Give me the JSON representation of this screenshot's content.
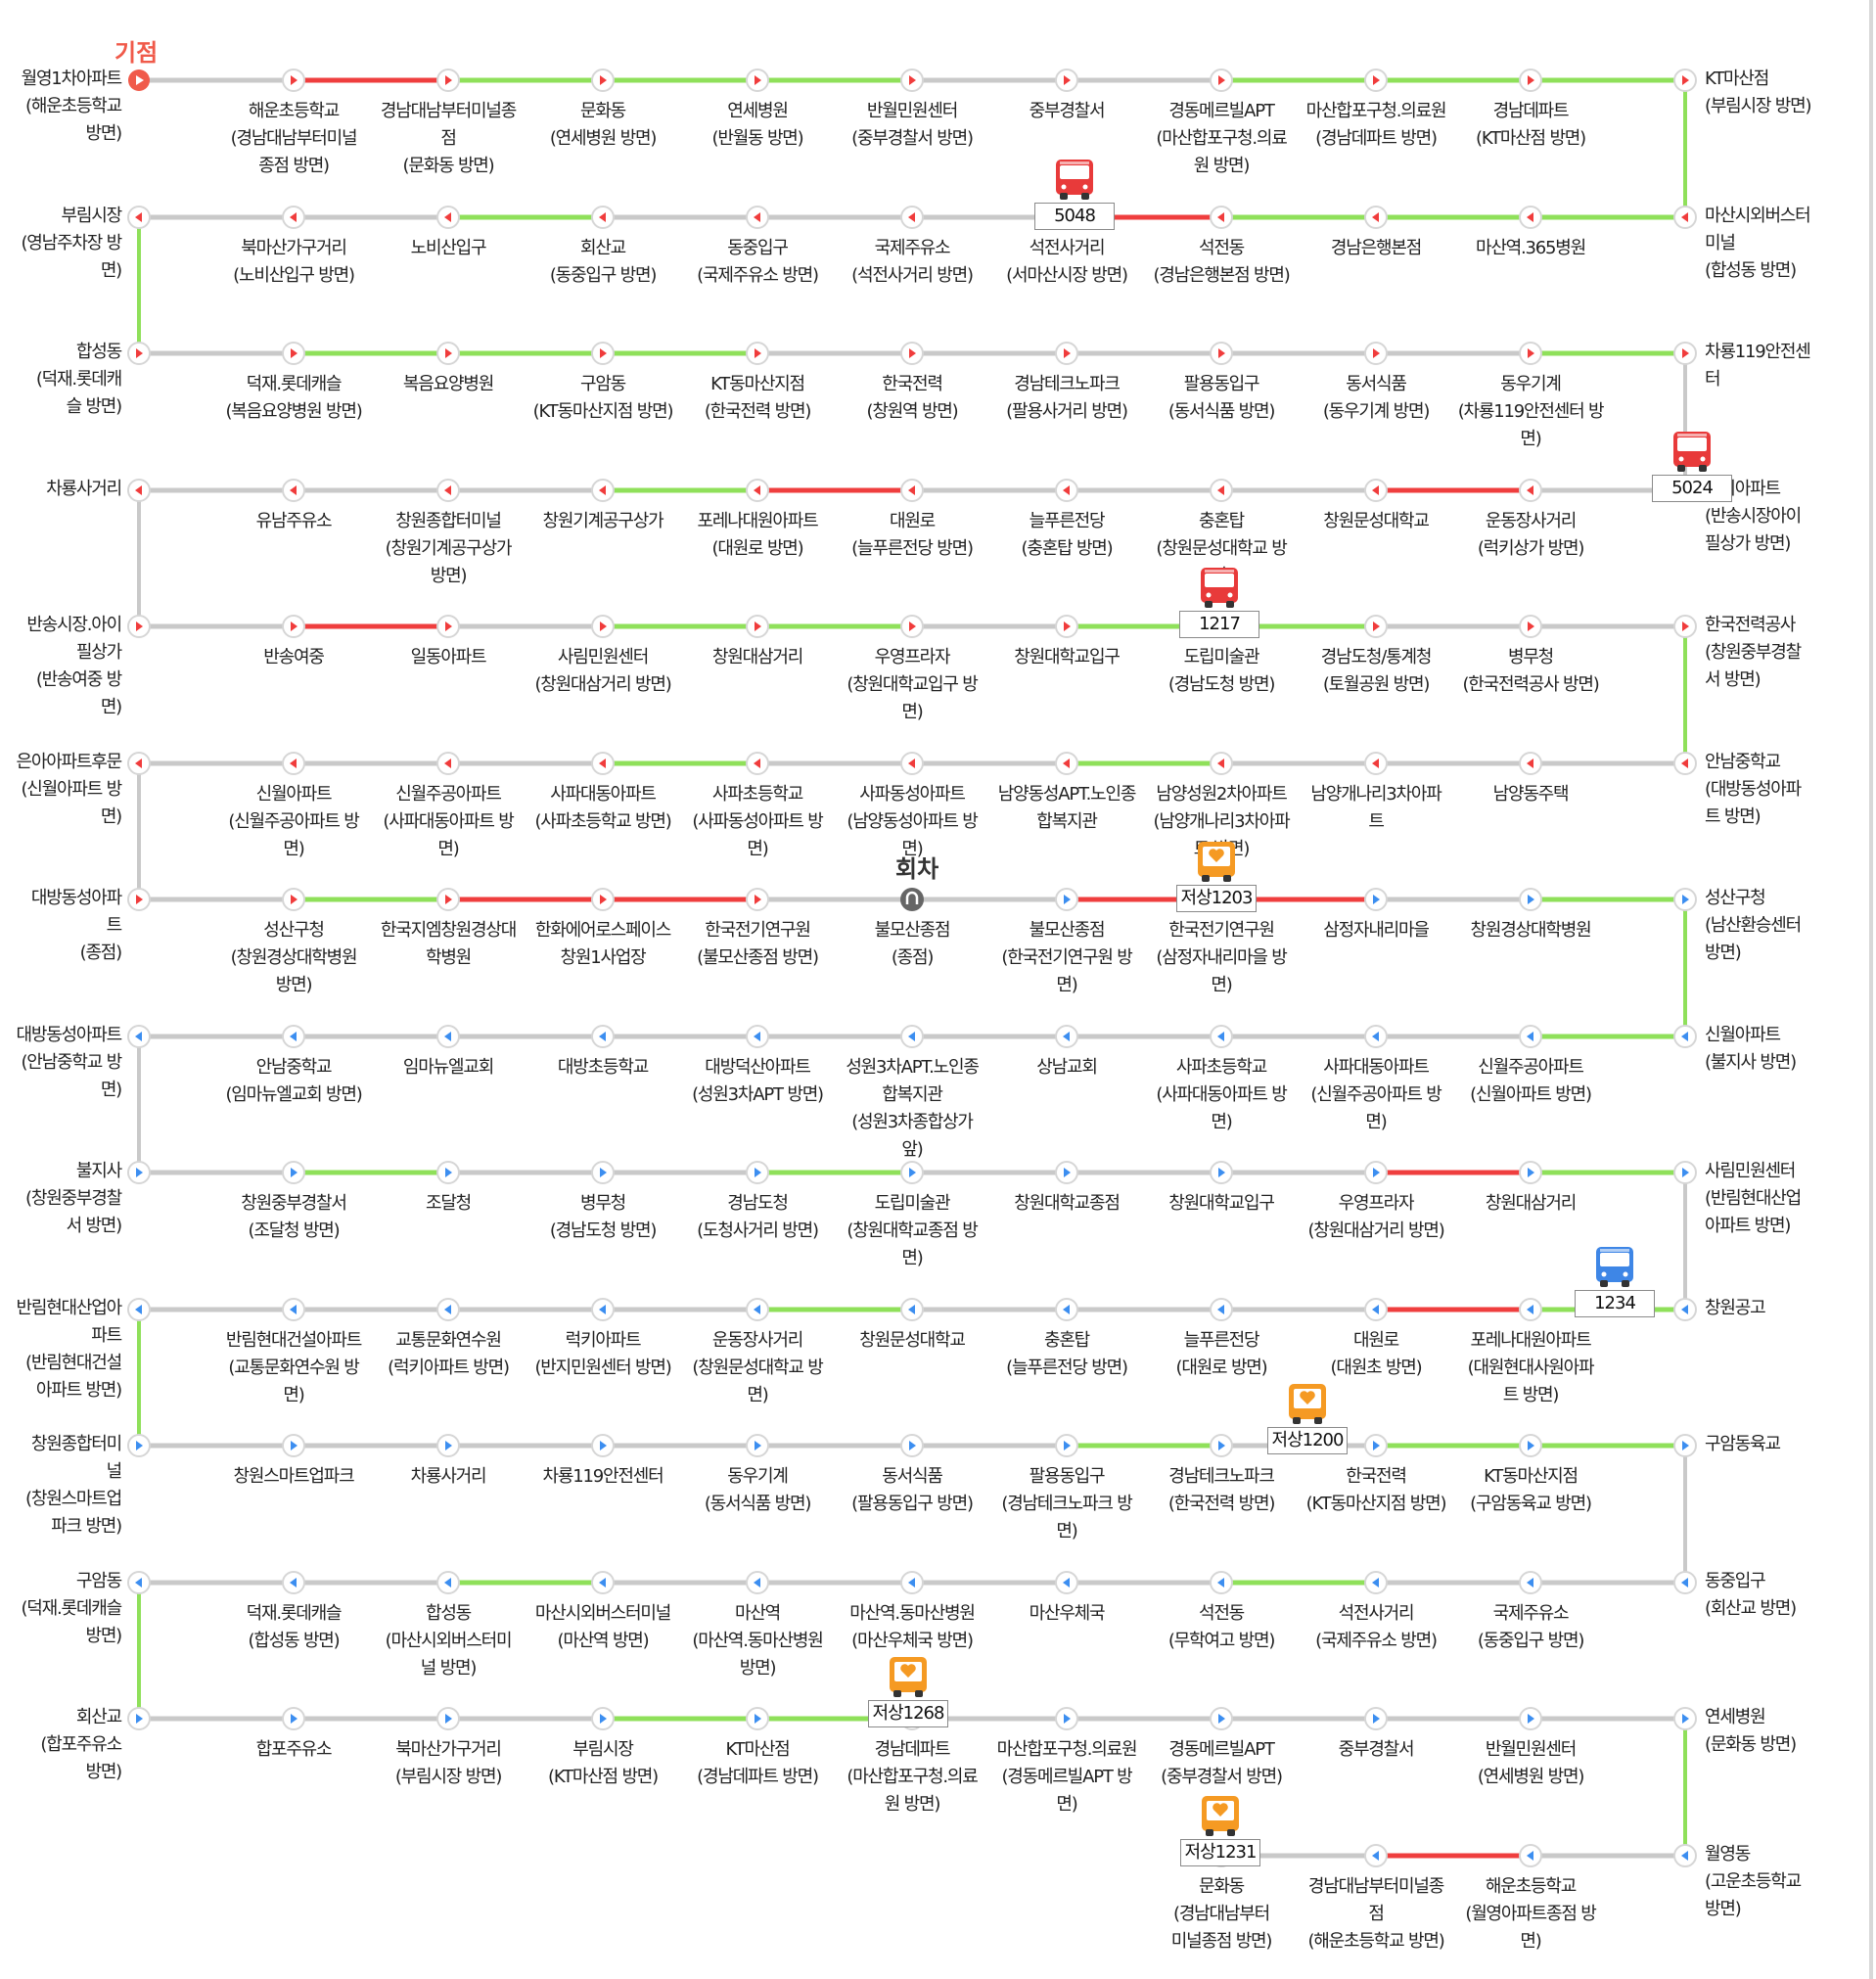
{
  "colors": {
    "normal": "#c9c9c9",
    "smooth": "#8fe05a",
    "congested": "#ef3e3e",
    "outbound": "#f03c3c",
    "inbound": "#3c8ef0",
    "bus_red": "#e83a3a",
    "bus_orange": "#f59a23",
    "bus_blue": "#3e86e6"
  },
  "start_label": "기점",
  "turn_label": "회차",
  "rows": [
    {
      "stops": [
        "월영1차아파트\n(해운초등학교\n방면)",
        "해운초등학교\n(경남대남부터미널\n종점 방면)",
        "경남대남부터미널종\n점\n(문화동 방면)",
        "문화동\n(연세병원 방면)",
        "연세병원\n(반월동 방면)",
        "반월민원센터\n(중부경찰서 방면)",
        "중부경찰서",
        "경동메르빌APT\n(마산합포구청.의료\n원 방면)",
        "마산합포구청.의료원\n(경남데파트 방면)",
        "경남데파트\n(KT마산점 방면)",
        "KT마산점\n(부림시장 방면)"
      ],
      "segments": [
        "normal",
        "congested",
        "smooth",
        "smooth",
        "smooth",
        "normal",
        "normal",
        "smooth",
        "smooth",
        "smooth"
      ]
    },
    {
      "stops": [
        "마산시외버스터\n미널\n(합성동 방면)",
        "마산역.365병원",
        "경남은행본점",
        "석전동\n(경남은행본점 방면)",
        "석전사거리\n(서마산시장 방면)",
        "국제주유소\n(석전사거리 방면)",
        "동중입구\n(국제주유소 방면)",
        "회산교\n(동중입구 방면)",
        "노비산입구",
        "북마산가구거리\n(노비산입구 방면)",
        "부림시장\n(영남주차장 방\n면)"
      ],
      "segments": [
        "smooth",
        "smooth",
        "smooth",
        "congested",
        "normal",
        "normal",
        "normal",
        "smooth",
        "normal",
        "normal"
      ]
    },
    {
      "stops": [
        "합성동\n(덕재.롯데캐\n슬 방면)",
        "덕재.롯데캐슬\n(복음요양병원 방면)",
        "복음요양병원",
        "구암동\n(KT동마산지점 방면)",
        "KT동마산지점\n(한국전력 방면)",
        "한국전력\n(창원역 방면)",
        "경남테크노파크\n(팔용사거리 방면)",
        "팔용동입구\n(동서식품 방면)",
        "동서식품\n(동우기계 방면)",
        "동우기계\n(차룡119안전센터 방\n면)",
        "차룡119안전센\n터"
      ],
      "segments": [
        "normal",
        "smooth",
        "smooth",
        "smooth",
        "normal",
        "normal",
        "normal",
        "normal",
        "normal",
        "smooth"
      ]
    },
    {
      "stops": [
        "럭키아파트\n(반송시장아이\n필상가 방면)",
        "운동장사거리\n(럭키상가 방면)",
        "창원문성대학교",
        "충혼탑\n(창원문성대학교 방\n면)",
        "늘푸른전당\n(충혼탑 방면)",
        "대원로\n(늘푸른전당 방면)",
        "포레나대원아파트\n(대원로 방면)",
        "창원기계공구상가",
        "창원종합터미널\n(창원기계공구상가\n방면)",
        "유남주유소",
        "차룡사거리"
      ],
      "segments": [
        "normal",
        "congested",
        "normal",
        "normal",
        "normal",
        "congested",
        "smooth",
        "normal",
        "normal",
        "normal"
      ]
    },
    {
      "stops": [
        "반송시장.아이\n필상가\n(반송여중 방\n면)",
        "반송여중",
        "일동아파트",
        "사림민원센터\n(창원대삼거리 방면)",
        "창원대삼거리",
        "우영프라자\n(창원대학교입구 방\n면)",
        "창원대학교입구",
        "도립미술관\n(경남도청 방면)",
        "경남도청/통계청\n(토월공원 방면)",
        "병무청\n(한국전력공사 방면)",
        "한국전력공사\n(창원중부경찰\n서 방면)"
      ],
      "segments": [
        "normal",
        "congested",
        "normal",
        "smooth",
        "smooth",
        "normal",
        "smooth",
        "smooth",
        "normal",
        "normal"
      ]
    },
    {
      "stops": [
        "안남중학교\n(대방동성아파\n트 방면)",
        "남양동주택",
        "남양개나리3차아파\n트",
        "남양성원2차아파트\n(남양개나리3차아파\n트 방면)",
        "남양동성APT.노인종\n합복지관",
        "사파동성아파트\n(남양동성아파트 방\n면)",
        "사파초등학교\n(사파동성아파트 방\n면)",
        "사파대동아파트\n(사파초등학교 방면)",
        "신월주공아파트\n(사파대동아파트 방\n면)",
        "신월아파트\n(신월주공아파트 방\n면)",
        "은아아파트후문\n(신월아파트 방\n면)"
      ],
      "segments": [
        "normal",
        "normal",
        "normal",
        "smooth",
        "normal",
        "normal",
        "smooth",
        "normal",
        "normal",
        "normal"
      ]
    },
    {
      "stops": [
        "대방동성아파\n트\n(종점)",
        "성산구청\n(창원경상대학병원\n방면)",
        "한국지엠창원경상대\n학병원",
        "한화에어로스페이스\n창원1사업장",
        "한국전기연구원\n(불모산종점 방면)",
        "불모산종점\n(종점)",
        "불모산종점\n(한국전기연구원 방\n면)",
        "한국전기연구원\n(삼정자내리마을 방\n면)",
        "삼정자내리마을",
        "창원경상대학병원",
        "성산구청\n(남산환승센터\n방면)"
      ],
      "segments": [
        "normal",
        "smooth",
        "congested",
        "congested",
        "normal",
        "normal",
        "congested",
        "congested",
        "normal",
        "smooth"
      ]
    },
    {
      "stops": [
        "신월아파트\n(불지사 방면)",
        "신월주공아파트\n(신월아파트 방면)",
        "사파대동아파트\n(신월주공아파트 방\n면)",
        "사파초등학교\n(사파대동아파트 방\n면)",
        "상남교회",
        "성원3차APT.노인종\n합복지관\n(성원3차종합상가\n앞)",
        "대방덕산아파트\n(성원3차APT 방면)",
        "대방초등학교",
        "임마뉴엘교회",
        "안남중학교\n(임마뉴엘교회 방면)",
        "대방동성아파트\n(안남중학교 방\n면)"
      ],
      "segments": [
        "smooth",
        "normal",
        "normal",
        "normal",
        "normal",
        "normal",
        "normal",
        "normal",
        "normal",
        "normal"
      ]
    },
    {
      "stops": [
        "불지사\n(창원중부경찰\n서 방면)",
        "창원중부경찰서\n(조달청 방면)",
        "조달청",
        "병무청\n(경남도청 방면)",
        "경남도청\n(도청사거리 방면)",
        "도립미술관\n(창원대학교종점 방\n면)",
        "창원대학교종점",
        "창원대학교입구",
        "우영프라자\n(창원대삼거리 방면)",
        "창원대삼거리",
        "사림민원센터\n(반림현대산업\n아파트 방면)"
      ],
      "segments": [
        "normal",
        "smooth",
        "normal",
        "normal",
        "smooth",
        "normal",
        "normal",
        "normal",
        "congested",
        "smooth"
      ]
    },
    {
      "stops": [
        "창원공고",
        "포레나대원아파트\n(대원현대사원아파\n트 방면)",
        "대원로\n(대원초 방면)",
        "늘푸른전당\n(대원로 방면)",
        "충혼탑\n(늘푸른전당 방면)",
        "창원문성대학교",
        "운동장사거리\n(창원문성대학교 방\n면)",
        "럭키아파트\n(반지민원센터 방면)",
        "교통문화연수원\n(럭키아파트 방면)",
        "반림현대건설아파트\n(교통문화연수원 방\n면)",
        "반림현대산업아\n파트\n(반림현대건설\n아파트 방면)"
      ],
      "segments": [
        "smooth",
        "congested",
        "normal",
        "normal",
        "normal",
        "smooth",
        "normal",
        "normal",
        "normal",
        "normal"
      ]
    },
    {
      "stops": [
        "창원종합터미\n널\n(창원스마트업\n파크 방면)",
        "창원스마트업파크",
        "차룡사거리",
        "차룡119안전센터",
        "동우기계\n(동서식품 방면)",
        "동서식품\n(팔용동입구 방면)",
        "팔용동입구\n(경남테크노파크 방\n면)",
        "경남테크노파크\n(한국전력 방면)",
        "한국전력\n(KT동마산지점 방면)",
        "KT동마산지점\n(구암동육교 방면)",
        "구암동육교"
      ],
      "segments": [
        "normal",
        "normal",
        "normal",
        "normal",
        "normal",
        "normal",
        "smooth",
        "normal",
        "smooth",
        "smooth"
      ]
    },
    {
      "stops": [
        "동중입구\n(회산교 방면)",
        "국제주유소\n(동중입구 방면)",
        "석전사거리\n(국제주유소 방면)",
        "석전동\n(무학여고 방면)",
        "마산우체국",
        "마산역.동마산병원\n(마산우체국 방면)",
        "마산역\n(마산역.동마산병원\n방면)",
        "마산시외버스터미널\n(마산역 방면)",
        "합성동\n(마산시외버스터미\n널 방면)",
        "덕재.롯데캐슬\n(합성동 방면)",
        "구암동\n(덕재.롯데캐슬\n방면)"
      ],
      "segments": [
        "normal",
        "normal",
        "smooth",
        "normal",
        "normal",
        "normal",
        "normal",
        "smooth",
        "normal",
        "normal"
      ]
    },
    {
      "stops": [
        "회산교\n(합포주유소\n방면)",
        "합포주유소",
        "북마산가구거리\n(부림시장 방면)",
        "부림시장\n(KT마산점 방면)",
        "KT마산점\n(경남데파트 방면)",
        "경남데파트\n(마산합포구청.의료\n원 방면)",
        "마산합포구청.의료원\n(경동메르빌APT 방\n면)",
        "경동메르빌APT\n(중부경찰서 방면)",
        "중부경찰서",
        "반월민원센터\n(연세병원 방면)",
        "연세병원\n(문화동 방면)"
      ],
      "segments": [
        "normal",
        "normal",
        "normal",
        "smooth",
        "smooth",
        "normal",
        "normal",
        "normal",
        "normal",
        "normal"
      ]
    },
    {
      "stops": [
        "월영동\n(고운초등학교\n방면)",
        "해운초등학교\n(월영아파트종점 방\n면)",
        "경남대남부터미널종\n점\n(해운초등학교 방면)",
        "문화동\n(경남대남부터\n미널종점 방면)"
      ],
      "segments": [
        "normal",
        "congested",
        "normal"
      ]
    }
  ],
  "buses": [
    {
      "number": "5048",
      "type": "red"
    },
    {
      "number": "5024",
      "type": "red"
    },
    {
      "number": "1217",
      "type": "red"
    },
    {
      "number": "저상1203",
      "type": "orange"
    },
    {
      "number": "1234",
      "type": "blue"
    },
    {
      "number": "저상1200",
      "type": "orange"
    },
    {
      "number": "저상1268",
      "type": "orange"
    },
    {
      "number": "저상1231",
      "type": "orange"
    }
  ]
}
